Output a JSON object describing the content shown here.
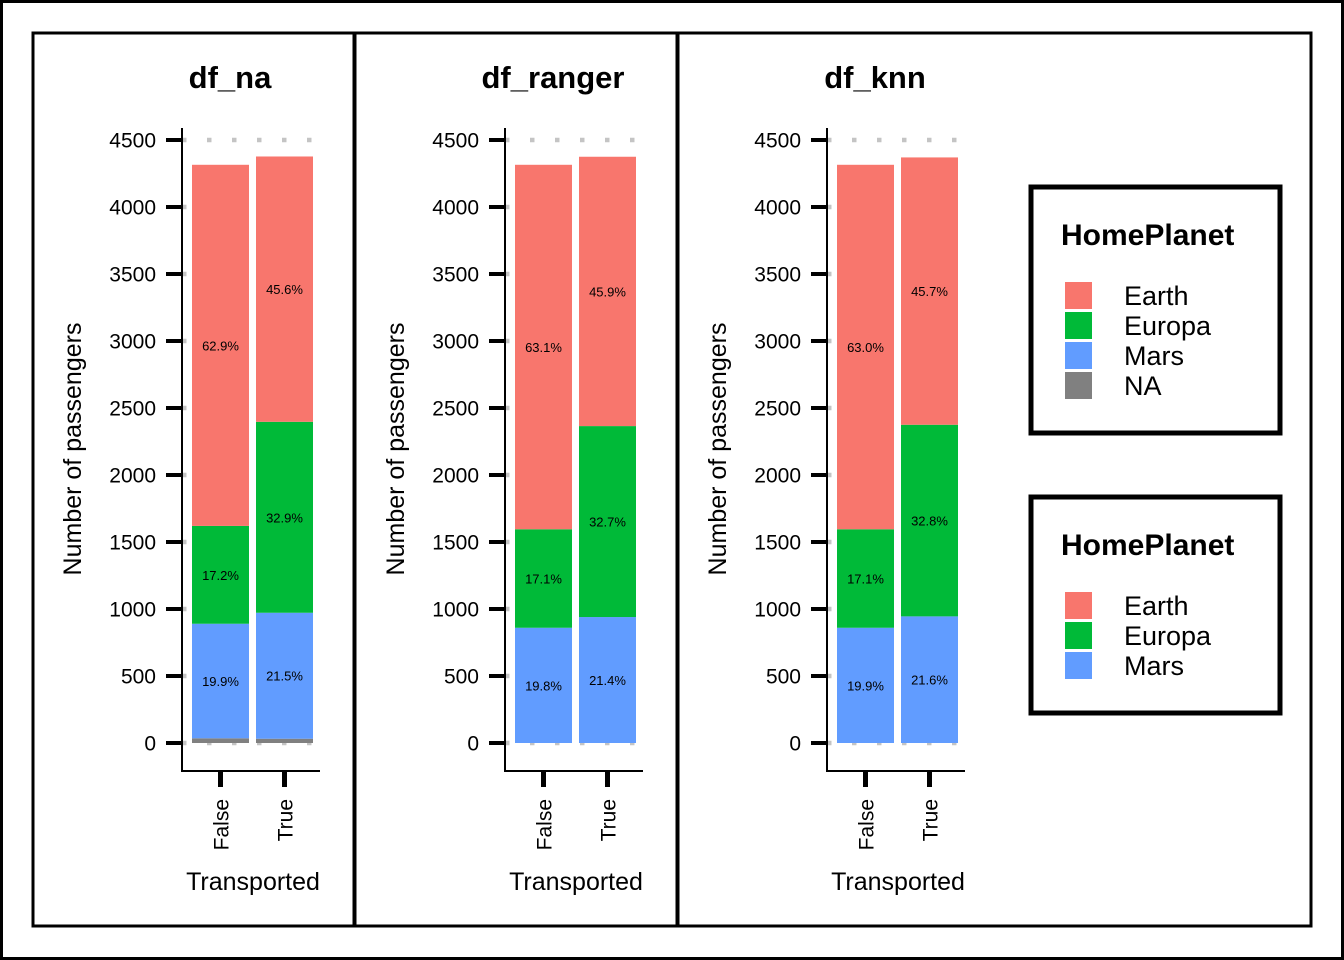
{
  "chart_data": [
    {
      "type": "bar",
      "stacked": true,
      "title": "df_na",
      "xlabel": "Transported",
      "ylabel": "Number of passengers",
      "categories": [
        "False",
        "True"
      ],
      "ylim": [
        0,
        4500
      ],
      "yticks": [
        0,
        500,
        1000,
        1500,
        2000,
        2500,
        3000,
        3500,
        4000,
        4500
      ],
      "grid": "horizontal-dotted",
      "series": [
        {
          "name": "NA",
          "color": "#808080",
          "values": [
            35,
            32
          ],
          "labels": [
            "",
            ""
          ]
        },
        {
          "name": "Mars",
          "color": "#619CFF",
          "values": [
            855,
            940
          ],
          "labels": [
            "19.9%",
            "21.5%"
          ]
        },
        {
          "name": "Europa",
          "color": "#00BA38",
          "values": [
            730,
            1425
          ],
          "labels": [
            "17.2%",
            "32.9%"
          ]
        },
        {
          "name": "Earth",
          "color": "#F8766D",
          "values": [
            2695,
            1980
          ],
          "labels": [
            "62.9%",
            "45.6%"
          ]
        }
      ]
    },
    {
      "type": "bar",
      "stacked": true,
      "title": "df_ranger",
      "xlabel": "Transported",
      "ylabel": "Number of passengers",
      "categories": [
        "False",
        "True"
      ],
      "ylim": [
        0,
        4500
      ],
      "yticks": [
        0,
        500,
        1000,
        1500,
        2000,
        2500,
        3000,
        3500,
        4000,
        4500
      ],
      "grid": "horizontal-dotted",
      "series": [
        {
          "name": "Mars",
          "color": "#619CFF",
          "values": [
            860,
            940
          ],
          "labels": [
            "19.8%",
            "21.4%"
          ]
        },
        {
          "name": "Europa",
          "color": "#00BA38",
          "values": [
            735,
            1425
          ],
          "labels": [
            "17.1%",
            "32.7%"
          ]
        },
        {
          "name": "Earth",
          "color": "#F8766D",
          "values": [
            2720,
            2010
          ],
          "labels": [
            "63.1%",
            "45.9%"
          ]
        }
      ]
    },
    {
      "type": "bar",
      "stacked": true,
      "title": "df_knn",
      "xlabel": "Transported",
      "ylabel": "Number of passengers",
      "categories": [
        "False",
        "True"
      ],
      "ylim": [
        0,
        4500
      ],
      "yticks": [
        0,
        500,
        1000,
        1500,
        2000,
        2500,
        3000,
        3500,
        4000,
        4500
      ],
      "grid": "horizontal-dotted",
      "series": [
        {
          "name": "Mars",
          "color": "#619CFF",
          "values": [
            860,
            945
          ],
          "labels": [
            "19.9%",
            "21.6%"
          ]
        },
        {
          "name": "Europa",
          "color": "#00BA38",
          "values": [
            735,
            1430
          ],
          "labels": [
            "17.1%",
            "32.8%"
          ]
        },
        {
          "name": "Earth",
          "color": "#F8766D",
          "values": [
            2720,
            1995
          ],
          "labels": [
            "63.0%",
            "45.7%"
          ]
        }
      ]
    }
  ],
  "legends": [
    {
      "title": "HomePlanet",
      "items": [
        {
          "label": "Earth",
          "color": "#F8766D"
        },
        {
          "label": "Europa",
          "color": "#00BA38"
        },
        {
          "label": "Mars",
          "color": "#619CFF"
        },
        {
          "label": "NA",
          "color": "#808080"
        }
      ]
    },
    {
      "title": "HomePlanet",
      "items": [
        {
          "label": "Earth",
          "color": "#F8766D"
        },
        {
          "label": "Europa",
          "color": "#00BA38"
        },
        {
          "label": "Mars",
          "color": "#619CFF"
        }
      ]
    }
  ]
}
